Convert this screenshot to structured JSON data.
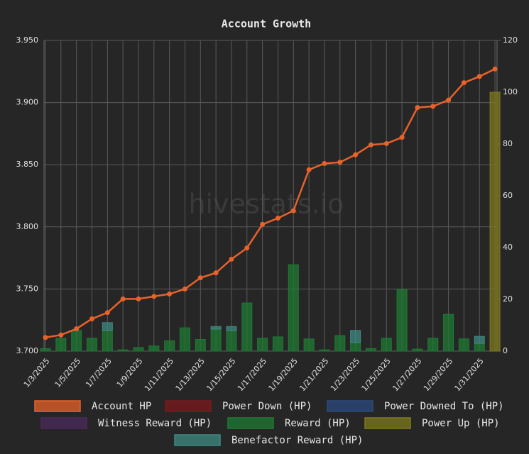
{
  "chart_data": {
    "type": "combo",
    "title": "Account Growth",
    "watermark": "hivestats.io",
    "categories": [
      "1/3/2025",
      null,
      "1/5/2025",
      null,
      "1/7/2025",
      null,
      "1/9/2025",
      null,
      "1/11/2025",
      null,
      "1/13/2025",
      null,
      "1/15/2025",
      null,
      "1/17/2025",
      null,
      "1/19/2025",
      null,
      "1/21/2025",
      null,
      "1/23/2025",
      null,
      "1/25/2025",
      null,
      "1/27/2025",
      null,
      "1/29/2025",
      null,
      "1/31/2025",
      null
    ],
    "ylim": [
      3.7,
      3.95
    ],
    "yticks": [
      {
        "value": 3.7,
        "label": "3.700"
      },
      {
        "value": 3.75,
        "label": "3.750"
      },
      {
        "value": 3.8,
        "label": "3.800"
      },
      {
        "value": 3.85,
        "label": "3.850"
      },
      {
        "value": 3.9,
        "label": "3.900"
      },
      {
        "value": 3.95,
        "label": "3.950"
      }
    ],
    "y2lim": [
      0,
      120
    ],
    "y2ticks": [
      0,
      20,
      40,
      60,
      80,
      100,
      120
    ],
    "grid": true,
    "legend": "bottom",
    "series": [
      {
        "name": "Account HP",
        "type": "line",
        "axis": "y",
        "color": "#e8622a",
        "values": [
          3.711,
          3.713,
          3.718,
          3.726,
          3.731,
          3.742,
          3.742,
          3.744,
          3.746,
          3.75,
          3.759,
          3.763,
          3.774,
          3.783,
          3.802,
          3.807,
          3.813,
          3.846,
          3.851,
          3.852,
          3.858,
          3.866,
          3.867,
          3.872,
          3.896,
          3.897,
          3.902,
          3.916,
          3.921,
          3.927
        ]
      },
      {
        "name": "Power Down (HP)",
        "type": "bar",
        "axis": "y2",
        "color": "#7a1a1e",
        "values": [
          0,
          0,
          0,
          0,
          0,
          0,
          0,
          0,
          0,
          0,
          0,
          0,
          0,
          0,
          0,
          0,
          0,
          0,
          0,
          0,
          0,
          0,
          0,
          0,
          0,
          0,
          0,
          0,
          0,
          0
        ]
      },
      {
        "name": "Power Downed To (HP)",
        "type": "bar",
        "axis": "y2",
        "color": "#2c4b7e",
        "values": [
          0,
          0,
          0,
          0,
          0,
          0,
          0,
          0,
          0,
          0,
          0,
          0,
          0,
          0,
          0,
          0,
          0,
          0,
          0,
          0,
          0,
          0,
          0,
          0,
          0,
          0,
          0,
          0,
          0,
          0
        ]
      },
      {
        "name": "Witness Reward (HP)",
        "type": "bar",
        "axis": "y2",
        "color": "#4b2a5c",
        "values": [
          0,
          0,
          0,
          0,
          0,
          0,
          0,
          0,
          0,
          0,
          0,
          0,
          0,
          0,
          0,
          0,
          0,
          0,
          0,
          0,
          0,
          0,
          0,
          0,
          0,
          0,
          0,
          0,
          0,
          0
        ]
      },
      {
        "name": "Reward (HP)",
        "type": "bar",
        "axis": "y2",
        "color": "#1f7a34",
        "values": [
          1,
          5,
          8,
          5,
          8,
          0.5,
          1.4,
          2,
          4,
          9,
          4.5,
          8.5,
          8,
          18.6,
          5,
          5.5,
          33.4,
          4.7,
          0.5,
          6,
          3.3,
          1,
          5,
          23.8,
          0.8,
          5,
          14.2,
          4.7,
          3,
          0
        ]
      },
      {
        "name": "Power Up (HP)",
        "type": "bar",
        "axis": "y2",
        "color": "#7d7a1f",
        "values": [
          0,
          0,
          0,
          0,
          0,
          0,
          0,
          0,
          0,
          0,
          0,
          0,
          0,
          0,
          0,
          0,
          0,
          0,
          0,
          0,
          0,
          0,
          0,
          0,
          0,
          0,
          0,
          0,
          0,
          100
        ]
      },
      {
        "name": "Benefactor Reward (HP)",
        "type": "bar",
        "axis": "y2",
        "color": "#3f8a82",
        "values": [
          0,
          0,
          0,
          0,
          3,
          0,
          0,
          0,
          0,
          0,
          0,
          1,
          1.5,
          0,
          0,
          0,
          0,
          0,
          0,
          0,
          4.7,
          0,
          0,
          0,
          0,
          0,
          0,
          0,
          2.7,
          0
        ]
      }
    ]
  }
}
